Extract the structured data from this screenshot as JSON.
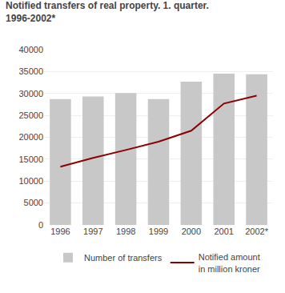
{
  "chart_data": {
    "type": "bar",
    "title": "Notified transfers of real property. 1. quarter.",
    "subtitle": "1996-2002*",
    "categories": [
      "1996",
      "1997",
      "1998",
      "1999",
      "2000",
      "2001",
      "2002*"
    ],
    "series": [
      {
        "name": "Number of transfers",
        "type": "bar",
        "color": "#c8c8c8",
        "values": [
          28700,
          29300,
          30100,
          28700,
          32700,
          34500,
          34400
        ]
      },
      {
        "name": "Notified amount\nin million kroner",
        "type": "line",
        "color": "#8b0000",
        "values": [
          13300,
          15300,
          17100,
          19000,
          21500,
          27700,
          29500
        ]
      }
    ],
    "ylim": [
      0,
      40000
    ],
    "yticks": [
      0,
      5000,
      10000,
      15000,
      20000,
      25000,
      30000,
      35000,
      40000
    ],
    "grid": true,
    "legend": "bottom"
  }
}
